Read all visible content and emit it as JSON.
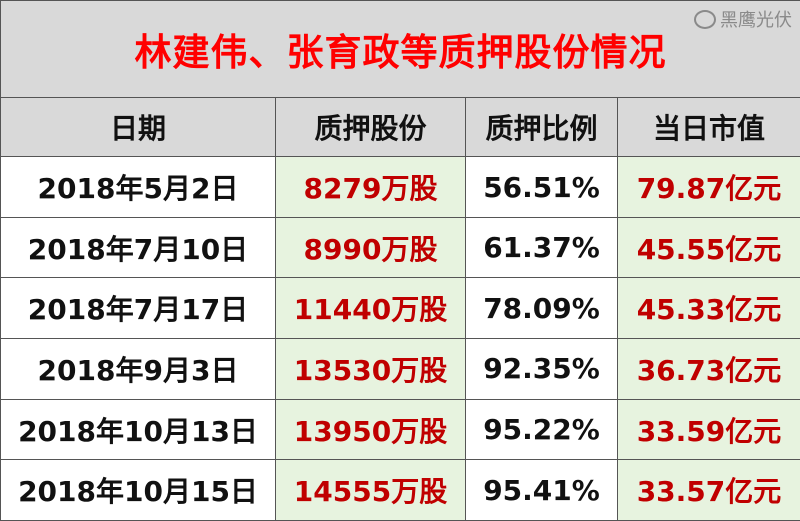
{
  "title": "林建伟、张育政等质押股份情况",
  "headers": [
    "日期",
    "质押股份",
    "质押比例",
    "当日市值"
  ],
  "rows": [
    {
      "date": "2018年5月2日",
      "shares": "8279万股",
      "ratio": "56.51%",
      "value": "79.87亿元"
    },
    {
      "date": "2018年7月10日",
      "shares": "8990万股",
      "ratio": "61.37%",
      "value": "45.55亿元"
    },
    {
      "date": "2018年7月17日",
      "shares": "11440万股",
      "ratio": "78.09%",
      "value": "45.33亿元"
    },
    {
      "date": "2018年9月3日",
      "shares": "13530万股",
      "ratio": "92.35%",
      "value": "36.73亿元"
    },
    {
      "date": "2018年10月13日",
      "shares": "13950万股",
      "ratio": "95.22%",
      "value": "33.59亿元"
    },
    {
      "date": "2018年10月15日",
      "shares": "14555万股",
      "ratio": "95.41%",
      "value": "33.57亿元"
    }
  ],
  "watermark": "黑鹰光伏",
  "colors": {
    "title": "#ff0000",
    "value_red": "#c00000",
    "header_bg": "#d9d9d9",
    "green_bg": "#e7f3df"
  }
}
